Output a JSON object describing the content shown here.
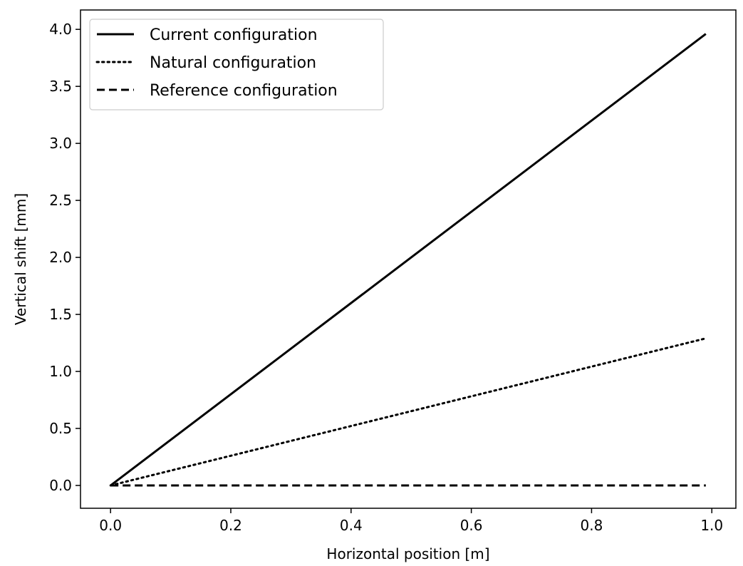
{
  "chart_data": {
    "type": "line",
    "title": "",
    "xlabel": "Horizontal position [m]",
    "ylabel": "Vertical shift [mm]",
    "xlim": [
      -0.05,
      1.04
    ],
    "ylim": [
      -0.2,
      4.17
    ],
    "xticks": [
      0.0,
      0.2,
      0.4,
      0.6,
      0.8,
      1.0
    ],
    "xtick_labels": [
      "0.0",
      "0.2",
      "0.4",
      "0.6",
      "0.8",
      "1.0"
    ],
    "yticks": [
      0.0,
      0.5,
      1.0,
      1.5,
      2.0,
      2.5,
      3.0,
      3.5,
      4.0
    ],
    "ytick_labels": [
      "0.0",
      "0.5",
      "1.0",
      "1.5",
      "2.0",
      "2.5",
      "3.0",
      "3.5",
      "4.0"
    ],
    "grid": false,
    "legend_position": "top-left",
    "series": [
      {
        "name": "Current configuration",
        "style": "solid",
        "color": "#000000",
        "x": [
          0.0,
          0.99
        ],
        "y": [
          0.0,
          3.96
        ]
      },
      {
        "name": "Natural configuration",
        "style": "dotted",
        "color": "#000000",
        "x": [
          0.0,
          0.99
        ],
        "y": [
          0.0,
          1.29
        ]
      },
      {
        "name": "Reference configuration",
        "style": "dashed",
        "color": "#000000",
        "x": [
          0.0,
          0.99
        ],
        "y": [
          0.0,
          0.0
        ]
      }
    ]
  }
}
